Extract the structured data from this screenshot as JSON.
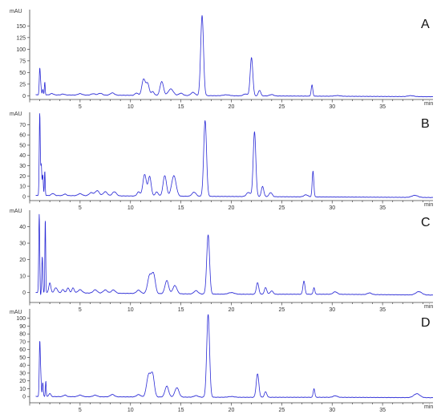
{
  "chart_data": [
    {
      "type": "line",
      "panel_label": "A",
      "ylabel": "mAU",
      "xlabel": "min",
      "x_ticks": [
        5,
        10,
        15,
        20,
        25,
        30,
        35
      ],
      "y_ticks": [
        0,
        25,
        50,
        75,
        100,
        125,
        150
      ],
      "xlim": [
        0,
        40
      ],
      "ylim": [
        -8,
        185
      ],
      "series_color": "#2b2bd6",
      "peaks": [
        {
          "x": 1.0,
          "y": 55,
          "w": 0.05
        },
        {
          "x": 1.1,
          "y": 20,
          "w": 0.05
        },
        {
          "x": 1.3,
          "y": 12,
          "w": 0.05
        },
        {
          "x": 1.5,
          "y": 28,
          "w": 0.04
        },
        {
          "x": 2.2,
          "y": 3,
          "w": 0.15
        },
        {
          "x": 3.3,
          "y": 2,
          "w": 0.15
        },
        {
          "x": 5.0,
          "y": 3,
          "w": 0.2
        },
        {
          "x": 6.3,
          "y": 3,
          "w": 0.2
        },
        {
          "x": 7.0,
          "y": 4,
          "w": 0.2
        },
        {
          "x": 8.2,
          "y": 5,
          "w": 0.2
        },
        {
          "x": 10.6,
          "y": 5,
          "w": 0.15
        },
        {
          "x": 11.3,
          "y": 35,
          "w": 0.17
        },
        {
          "x": 11.7,
          "y": 25,
          "w": 0.15
        },
        {
          "x": 12.2,
          "y": 8,
          "w": 0.15
        },
        {
          "x": 13.1,
          "y": 30,
          "w": 0.17
        },
        {
          "x": 14.0,
          "y": 14,
          "w": 0.25
        },
        {
          "x": 15.0,
          "y": 5,
          "w": 0.2
        },
        {
          "x": 16.2,
          "y": 7,
          "w": 0.2
        },
        {
          "x": 17.1,
          "y": 172,
          "w": 0.14
        },
        {
          "x": 19.5,
          "y": 2,
          "w": 0.3
        },
        {
          "x": 21.4,
          "y": 4,
          "w": 0.2
        },
        {
          "x": 22.0,
          "y": 82,
          "w": 0.13
        },
        {
          "x": 22.8,
          "y": 12,
          "w": 0.12
        },
        {
          "x": 24.0,
          "y": 3,
          "w": 0.2
        },
        {
          "x": 28.0,
          "y": 24,
          "w": 0.08
        },
        {
          "x": 30.5,
          "y": 1.5,
          "w": 0.3
        },
        {
          "x": 37.8,
          "y": 2,
          "w": 0.3
        }
      ],
      "baseline": [
        {
          "x": 0.6,
          "y": 2
        },
        {
          "x": 10,
          "y": 1
        },
        {
          "x": 20,
          "y": 0
        },
        {
          "x": 30,
          "y": -1
        },
        {
          "x": 40,
          "y": -2
        }
      ]
    },
    {
      "type": "line",
      "panel_label": "B",
      "ylabel": "mAU",
      "xlabel": "min",
      "x_ticks": [
        5,
        10,
        15,
        20,
        25,
        30,
        35
      ],
      "y_ticks": [
        0,
        10,
        20,
        30,
        40,
        50,
        60,
        70
      ],
      "xlim": [
        0,
        40
      ],
      "ylim": [
        -4,
        82
      ],
      "series_color": "#2b2bd6",
      "peaks": [
        {
          "x": 1.0,
          "y": 80,
          "w": 0.05
        },
        {
          "x": 1.15,
          "y": 30,
          "w": 0.05
        },
        {
          "x": 1.3,
          "y": 20,
          "w": 0.05
        },
        {
          "x": 1.5,
          "y": 24,
          "w": 0.04
        },
        {
          "x": 2.3,
          "y": 2,
          "w": 0.15
        },
        {
          "x": 3.5,
          "y": 1.5,
          "w": 0.15
        },
        {
          "x": 5.0,
          "y": 2,
          "w": 0.2
        },
        {
          "x": 6.1,
          "y": 3,
          "w": 0.2
        },
        {
          "x": 6.7,
          "y": 5,
          "w": 0.2
        },
        {
          "x": 7.5,
          "y": 4,
          "w": 0.2
        },
        {
          "x": 8.4,
          "y": 4,
          "w": 0.2
        },
        {
          "x": 10.8,
          "y": 4,
          "w": 0.15
        },
        {
          "x": 11.4,
          "y": 21,
          "w": 0.17
        },
        {
          "x": 11.9,
          "y": 19,
          "w": 0.15
        },
        {
          "x": 12.6,
          "y": 4,
          "w": 0.15
        },
        {
          "x": 13.4,
          "y": 20,
          "w": 0.17
        },
        {
          "x": 14.3,
          "y": 20,
          "w": 0.22
        },
        {
          "x": 16.3,
          "y": 4,
          "w": 0.2
        },
        {
          "x": 17.4,
          "y": 74,
          "w": 0.14
        },
        {
          "x": 21.7,
          "y": 4,
          "w": 0.2
        },
        {
          "x": 22.3,
          "y": 63,
          "w": 0.13
        },
        {
          "x": 23.1,
          "y": 10,
          "w": 0.12
        },
        {
          "x": 23.9,
          "y": 4,
          "w": 0.15
        },
        {
          "x": 27.4,
          "y": 2,
          "w": 0.2
        },
        {
          "x": 28.1,
          "y": 25,
          "w": 0.08
        },
        {
          "x": 38.2,
          "y": 2,
          "w": 0.3
        }
      ],
      "baseline": [
        {
          "x": 0.6,
          "y": 1
        },
        {
          "x": 10,
          "y": 0.5
        },
        {
          "x": 20,
          "y": 0
        },
        {
          "x": 30,
          "y": -0.5
        },
        {
          "x": 40,
          "y": -1
        }
      ]
    },
    {
      "type": "line",
      "panel_label": "C",
      "ylabel": "mAU",
      "xlabel": "min",
      "x_ticks": [
        5,
        10,
        15,
        20,
        25,
        30,
        35
      ],
      "y_ticks": [
        0,
        10,
        20,
        30,
        40
      ],
      "xlim": [
        0,
        40
      ],
      "ylim": [
        -6,
        50
      ],
      "series_color": "#2b2bd6",
      "peaks": [
        {
          "x": 0.95,
          "y": 48,
          "w": 0.05
        },
        {
          "x": 1.05,
          "y": -4,
          "w": 0.04
        },
        {
          "x": 1.25,
          "y": 22,
          "w": 0.05
        },
        {
          "x": 1.55,
          "y": 45,
          "w": 0.04
        },
        {
          "x": 2.0,
          "y": 6,
          "w": 0.1
        },
        {
          "x": 2.6,
          "y": 3,
          "w": 0.15
        },
        {
          "x": 3.3,
          "y": 2,
          "w": 0.12
        },
        {
          "x": 3.8,
          "y": 3,
          "w": 0.12
        },
        {
          "x": 4.3,
          "y": 3,
          "w": 0.12
        },
        {
          "x": 5.0,
          "y": 2,
          "w": 0.2
        },
        {
          "x": 6.5,
          "y": 2,
          "w": 0.2
        },
        {
          "x": 7.5,
          "y": 2,
          "w": 0.2
        },
        {
          "x": 8.3,
          "y": 2,
          "w": 0.2
        },
        {
          "x": 10.8,
          "y": 2,
          "w": 0.2
        },
        {
          "x": 11.9,
          "y": 11,
          "w": 0.2
        },
        {
          "x": 12.3,
          "y": 11,
          "w": 0.17
        },
        {
          "x": 13.6,
          "y": 8,
          "w": 0.18
        },
        {
          "x": 14.4,
          "y": 5,
          "w": 0.2
        },
        {
          "x": 16.5,
          "y": 2,
          "w": 0.2
        },
        {
          "x": 17.7,
          "y": 36,
          "w": 0.14
        },
        {
          "x": 20.0,
          "y": 1,
          "w": 0.3
        },
        {
          "x": 22.6,
          "y": 7,
          "w": 0.12
        },
        {
          "x": 23.4,
          "y": 4,
          "w": 0.12
        },
        {
          "x": 24.0,
          "y": 2,
          "w": 0.15
        },
        {
          "x": 27.2,
          "y": 8,
          "w": 0.1
        },
        {
          "x": 28.2,
          "y": 4,
          "w": 0.08
        },
        {
          "x": 30.3,
          "y": 1.5,
          "w": 0.2
        },
        {
          "x": 33.7,
          "y": 1,
          "w": 0.2
        },
        {
          "x": 38.6,
          "y": 2,
          "w": 0.3
        }
      ],
      "baseline": [
        {
          "x": 0.6,
          "y": 0
        },
        {
          "x": 10,
          "y": -0.5
        },
        {
          "x": 20,
          "y": -1
        },
        {
          "x": 30,
          "y": -1
        },
        {
          "x": 40,
          "y": -1.5
        }
      ]
    },
    {
      "type": "line",
      "panel_label": "D",
      "ylabel": "mAU",
      "xlabel": "min",
      "x_ticks": [
        5,
        10,
        15,
        20,
        25,
        30,
        35
      ],
      "y_ticks": [
        0,
        10,
        20,
        30,
        40,
        50,
        60,
        70,
        80,
        90,
        100
      ],
      "xlim": [
        0,
        40
      ],
      "ylim": [
        -8,
        112
      ],
      "series_color": "#2b2bd6",
      "peaks": [
        {
          "x": 1.0,
          "y": 68,
          "w": 0.05
        },
        {
          "x": 1.1,
          "y": 25,
          "w": 0.05
        },
        {
          "x": 1.3,
          "y": 18,
          "w": 0.05
        },
        {
          "x": 1.6,
          "y": 20,
          "w": 0.04
        },
        {
          "x": 2.0,
          "y": 4,
          "w": 0.1
        },
        {
          "x": 3.5,
          "y": 2,
          "w": 0.15
        },
        {
          "x": 5.0,
          "y": 2,
          "w": 0.2
        },
        {
          "x": 6.5,
          "y": 2,
          "w": 0.2
        },
        {
          "x": 8.2,
          "y": 3,
          "w": 0.2
        },
        {
          "x": 10.8,
          "y": 3,
          "w": 0.2
        },
        {
          "x": 11.8,
          "y": 28,
          "w": 0.2
        },
        {
          "x": 12.2,
          "y": 27,
          "w": 0.17
        },
        {
          "x": 13.6,
          "y": 14,
          "w": 0.18
        },
        {
          "x": 14.6,
          "y": 12,
          "w": 0.2
        },
        {
          "x": 16.5,
          "y": 2,
          "w": 0.2
        },
        {
          "x": 17.7,
          "y": 106,
          "w": 0.14
        },
        {
          "x": 20.0,
          "y": 1,
          "w": 0.3
        },
        {
          "x": 22.6,
          "y": 30,
          "w": 0.13
        },
        {
          "x": 23.4,
          "y": 7,
          "w": 0.12
        },
        {
          "x": 28.2,
          "y": 11,
          "w": 0.08
        },
        {
          "x": 30.3,
          "y": 2,
          "w": 0.2
        },
        {
          "x": 38.4,
          "y": 5,
          "w": 0.3
        }
      ],
      "baseline": [
        {
          "x": 0.6,
          "y": 0
        },
        {
          "x": 10,
          "y": -0.5
        },
        {
          "x": 20,
          "y": -1
        },
        {
          "x": 30,
          "y": -1
        },
        {
          "x": 40,
          "y": -1.5
        }
      ]
    }
  ]
}
